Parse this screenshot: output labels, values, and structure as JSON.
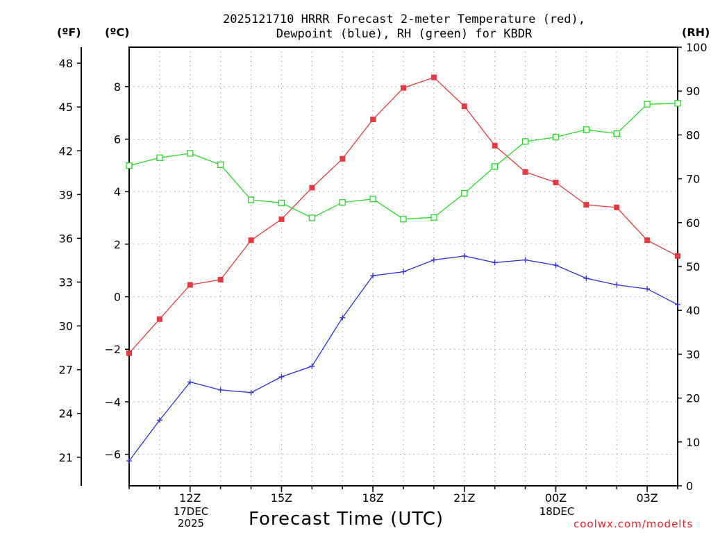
{
  "chart_data": {
    "type": "line",
    "title": [
      "2025121710 HRRR Forecast 2-meter Temperature (red),",
      "Dewpoint (blue), RH (green) for KBDR"
    ],
    "xlabel": "Forecast Time (UTC)",
    "units": {
      "fahrenheit": "(ºF)",
      "celsius": "(ºC)",
      "rh": "(RH)"
    },
    "x_hours": [
      10,
      11,
      12,
      13,
      14,
      15,
      16,
      17,
      18,
      19,
      20,
      21,
      22,
      23,
      24,
      25,
      26,
      27,
      28
    ],
    "x_ticks": [
      {
        "hour": 12,
        "label": "12Z"
      },
      {
        "hour": 15,
        "label": "15Z"
      },
      {
        "hour": 18,
        "label": "18Z"
      },
      {
        "hour": 21,
        "label": "21Z"
      },
      {
        "hour": 24,
        "label": "00Z"
      },
      {
        "hour": 27,
        "label": "03Z"
      }
    ],
    "date_labels": [
      {
        "hour": 12,
        "lines": [
          "17DEC",
          "2025"
        ]
      },
      {
        "hour": 24,
        "lines": [
          "18DEC"
        ]
      }
    ],
    "xlim": [
      10,
      28
    ],
    "celsius_axis": {
      "ylim": [
        -7.2,
        9.5
      ],
      "ticks": [
        -6,
        -4,
        -2,
        0,
        2,
        4,
        6,
        8
      ]
    },
    "fahrenheit_axis": {
      "ticks": [
        21,
        24,
        27,
        30,
        33,
        36,
        39,
        42,
        45,
        48
      ]
    },
    "rh_axis": {
      "ylim": [
        0,
        100
      ],
      "ticks": [
        0,
        10,
        20,
        30,
        40,
        50,
        60,
        70,
        80,
        90,
        100
      ]
    },
    "series": [
      {
        "name": "Temperature",
        "axis": "C",
        "color": "#e8383d",
        "marker": "filled-square",
        "values": [
          -2.15,
          -0.85,
          0.45,
          0.65,
          2.15,
          2.95,
          4.15,
          5.25,
          6.75,
          7.95,
          8.35,
          7.25,
          5.75,
          4.75,
          4.35,
          3.5,
          3.4,
          2.15,
          1.55
        ]
      },
      {
        "name": "Dewpoint",
        "axis": "C",
        "color": "#2b2be8",
        "marker": "plus",
        "values": [
          -6.25,
          -4.7,
          -3.25,
          -3.55,
          -3.65,
          -3.05,
          -2.65,
          -0.8,
          0.8,
          0.95,
          1.4,
          1.55,
          1.3,
          1.4,
          1.2,
          0.7,
          0.45,
          0.3,
          -0.3
        ]
      },
      {
        "name": "RH",
        "axis": "RH",
        "color": "#22dd22",
        "marker": "open-square",
        "values": [
          73,
          74.8,
          75.8,
          73.2,
          65.2,
          64.5,
          61.1,
          64.6,
          65.4,
          60.8,
          61.2,
          66.7,
          72.8,
          78.5,
          79.5,
          81.2,
          80.3,
          87,
          87.2
        ]
      }
    ]
  },
  "credit": "coolwx.com/modelts"
}
